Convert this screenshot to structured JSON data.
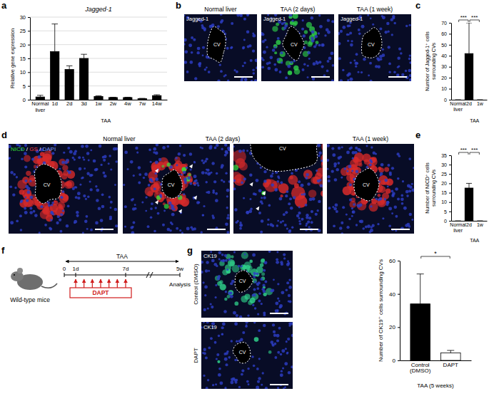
{
  "panel_labels": [
    "a",
    "b",
    "c",
    "d",
    "e",
    "f",
    "g"
  ],
  "chart_data": [
    {
      "type": "bar",
      "title": "Jagged-1",
      "y_label": [
        "Relative gene expression"
      ],
      "categories": [
        "Normal liver",
        "1d",
        "2d",
        "3d",
        "1w",
        "2w",
        "4w",
        "7w",
        "14w"
      ],
      "values": [
        1,
        17.5,
        11,
        15,
        1.2,
        0.8,
        0.8,
        0.4,
        1.5
      ],
      "errors": [
        0.6,
        10,
        1.3,
        1.5,
        0.2,
        0.1,
        0.1,
        0.1,
        0.3
      ],
      "category_group": "TAA",
      "ylim": [
        0,
        30
      ],
      "yticks": [
        0,
        5,
        10,
        15,
        20,
        25,
        30
      ],
      "color": "#000000",
      "grid": true
    },
    {
      "type": "bar",
      "y_label": [
        "Number of  Jagged-1⁺ cells",
        "surrounding CVs"
      ],
      "categories": [
        "Normal liver",
        "2d",
        "1w"
      ],
      "values": [
        0,
        42,
        0
      ],
      "errors": [
        0,
        28,
        0
      ],
      "category_group": "TAA",
      "ylim": [
        0,
        70
      ],
      "yticks": [
        0,
        10,
        20,
        30,
        40,
        50,
        60,
        70
      ],
      "color": "#000000",
      "annotations": [
        "***",
        "***"
      ]
    },
    {
      "type": "bar",
      "y_label": [
        "Number of NICD⁺ cells",
        "surrounding CVs"
      ],
      "categories": [
        "Normal liver",
        "2d",
        "1w"
      ],
      "values": [
        0,
        17.5,
        0
      ],
      "errors": [
        0,
        2.5,
        0
      ],
      "category_group": "TAA",
      "ylim": [
        0,
        35
      ],
      "yticks": [
        0,
        5,
        10,
        15,
        20,
        25,
        30,
        35
      ],
      "color": "#000000",
      "annotations": [
        "***",
        "***"
      ]
    },
    {
      "type": "bar",
      "y_label": [
        "Number of CK19⁺ cells surrounding CVs"
      ],
      "categories": [
        "Control (DMSO)",
        "DAPT"
      ],
      "values": [
        34,
        4.5
      ],
      "errors": [
        18,
        1.5
      ],
      "category_group": "TAA (5 weeks)",
      "ylim": [
        0,
        60
      ],
      "yticks": [
        0,
        20,
        40,
        60
      ],
      "colors": [
        "#000000",
        "#ffffff"
      ],
      "annotations": [
        "*"
      ]
    }
  ],
  "images": {
    "b": {
      "stain": "Jagged-1",
      "titles": [
        "Normal liver",
        "TAA (2 days)",
        "TAA (1 week)"
      ],
      "vessel": "CV"
    },
    "d": {
      "stains": [
        {
          "text": "NICD",
          "color": "#33dd33"
        },
        {
          "text": "GS",
          "color": "#ff4040"
        },
        {
          "text": "DAPI",
          "color": "#7f9bff"
        }
      ],
      "separator": " / ",
      "titles": [
        "Normal liver",
        "TAA (2 days)",
        "TAA (1 week)"
      ],
      "vessel": "CV"
    },
    "g": {
      "stain": "CK19",
      "rows": [
        "Control (DMSO)",
        "DAPT"
      ],
      "vessel": "CV"
    }
  },
  "diagram_f": {
    "subject": "Wild-type mice",
    "treatment": "TAA",
    "drug": "DAPT",
    "timepoints": [
      "0",
      "1d",
      "7d",
      "5w"
    ],
    "end": "Analysis"
  }
}
